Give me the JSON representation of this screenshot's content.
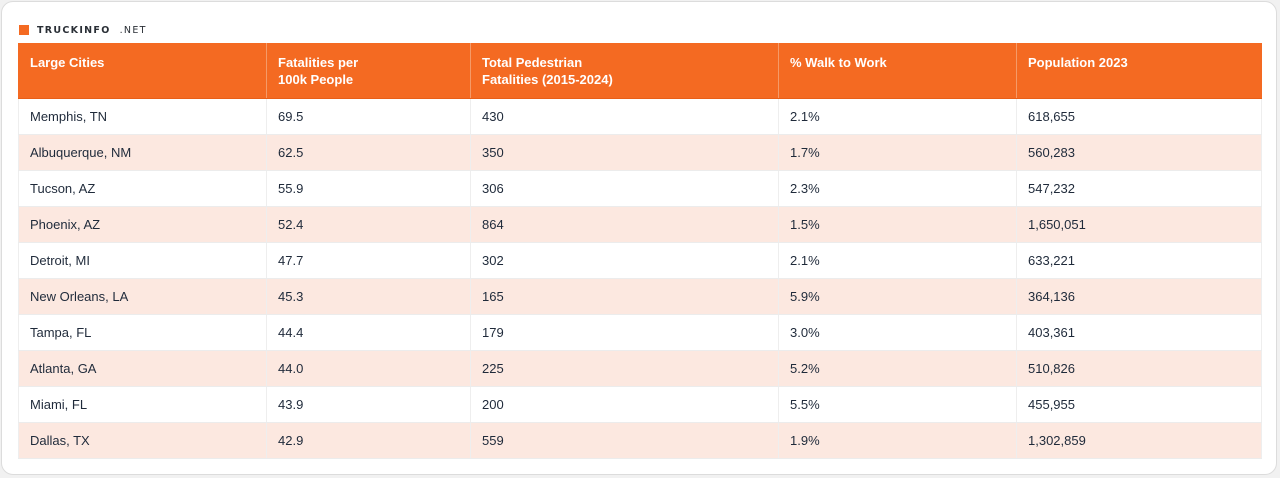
{
  "brand": {
    "name": "TRUCKINFO",
    "tld": ".NET",
    "accent_color": "#f46a22",
    "stripe_color": "#fce8e0"
  },
  "chart_data": {
    "type": "table",
    "columns": [
      [
        "Large Cities"
      ],
      [
        "Fatalities per",
        "100k People"
      ],
      [
        "Total Pedestrian",
        "Fatalities (2015-2024)"
      ],
      [
        "% Walk to Work"
      ],
      [
        "Population 2023"
      ]
    ],
    "rows": [
      [
        "Memphis, TN",
        "69.5",
        "430",
        "2.1%",
        "618,655"
      ],
      [
        "Albuquerque, NM",
        "62.5",
        "350",
        "1.7%",
        "560,283"
      ],
      [
        "Tucson, AZ",
        "55.9",
        "306",
        "2.3%",
        "547,232"
      ],
      [
        "Phoenix, AZ",
        "52.4",
        "864",
        "1.5%",
        "1,650,051"
      ],
      [
        "Detroit, MI",
        "47.7",
        "302",
        "2.1%",
        "633,221"
      ],
      [
        "New Orleans, LA",
        "45.3",
        "165",
        "5.9%",
        "364,136"
      ],
      [
        "Tampa, FL",
        "44.4",
        "179",
        "3.0%",
        "403,361"
      ],
      [
        "Atlanta, GA",
        "44.0",
        "225",
        "5.2%",
        "510,826"
      ],
      [
        "Miami, FL",
        "43.9",
        "200",
        "5.5%",
        "455,955"
      ],
      [
        "Dallas, TX",
        "42.9",
        "559",
        "1.9%",
        "1,302,859"
      ]
    ]
  }
}
